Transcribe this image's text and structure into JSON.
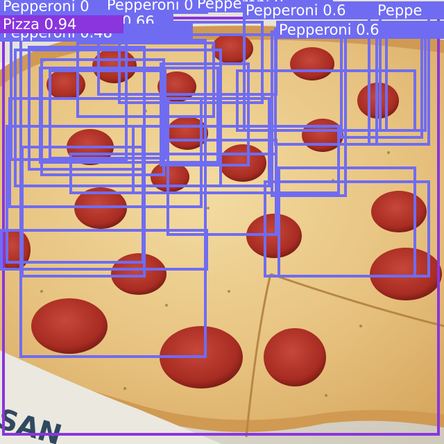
{
  "image": {
    "subject": "pepperoni pizza in a box",
    "box_text": "SAN",
    "colors": {
      "pizza_box": "#8a35dd",
      "pepperoni_box": "#6f6cf2",
      "label_text": "#ffffff",
      "cheese": "#e8c98a",
      "pepperoni": "#b8372b",
      "crust": "#d9a55d",
      "box_cardboard": "#eae6dc"
    }
  },
  "detections": [
    {
      "label": "Pizza",
      "score": "0.94",
      "text": "Pizza 0.94",
      "cls": "pizza"
    },
    {
      "label": "Pepperoni",
      "score": "0.48",
      "text": "Pepperoni 0.48",
      "cls": "pepperoni"
    },
    {
      "label": "Pepperoni",
      "score": "0.65",
      "text": "Pepperoni 0.65",
      "cls": "pepperoni"
    },
    {
      "label": "Pepperoni",
      "score": "0.66",
      "text": "0.66",
      "cls": "pepperoni"
    },
    {
      "label": "Pepperoni",
      "text": "Pepperoni 0",
      "cls": "pepperoni"
    },
    {
      "label": "Pepperoni",
      "text": "Pepperoni 0.",
      "cls": "pepperoni"
    },
    {
      "label": "Pepperoni",
      "text": "Peppe",
      "cls": "pepperoni"
    },
    {
      "label": "Pepperoni",
      "text": "Pepperoni 0.6",
      "cls": "pepperoni"
    },
    {
      "label": "Pepperoni",
      "cls": "pepperoni"
    },
    {
      "label": "Pepperoni",
      "cls": "pepperoni"
    },
    {
      "label": "Pepperoni",
      "cls": "pepperoni"
    },
    {
      "label": "Pepperoni",
      "cls": "pepperoni"
    },
    {
      "label": "Pepperoni",
      "cls": "pepperoni"
    },
    {
      "label": "Pepperoni",
      "cls": "pepperoni"
    },
    {
      "label": "Pepperoni",
      "cls": "pepperoni"
    },
    {
      "label": "Pepperoni",
      "cls": "pepperoni"
    },
    {
      "label": "Pepperoni",
      "cls": "pepperoni"
    },
    {
      "label": "Pepperoni",
      "cls": "pepperoni"
    },
    {
      "label": "Pepperoni",
      "cls": "pepperoni"
    },
    {
      "label": "Pepperoni",
      "cls": "pepperoni"
    },
    {
      "label": "Pepperoni",
      "cls": "pepperoni"
    },
    {
      "label": "Pepperoni",
      "cls": "pepperoni"
    },
    {
      "label": "Pepperoni",
      "cls": "pepperoni"
    },
    {
      "label": "Pepperoni",
      "cls": "pepperoni"
    },
    {
      "label": "Pepperoni",
      "cls": "pepperoni"
    },
    {
      "label": "Pepperoni",
      "cls": "pepperoni"
    },
    {
      "label": "Pepperoni",
      "cls": "pepperoni"
    },
    {
      "label": "Pepperoni",
      "cls": "pepperoni"
    },
    {
      "label": "Pepperoni",
      "cls": "pepperoni"
    },
    {
      "label": "Pepperoni",
      "cls": "pepperoni"
    }
  ]
}
